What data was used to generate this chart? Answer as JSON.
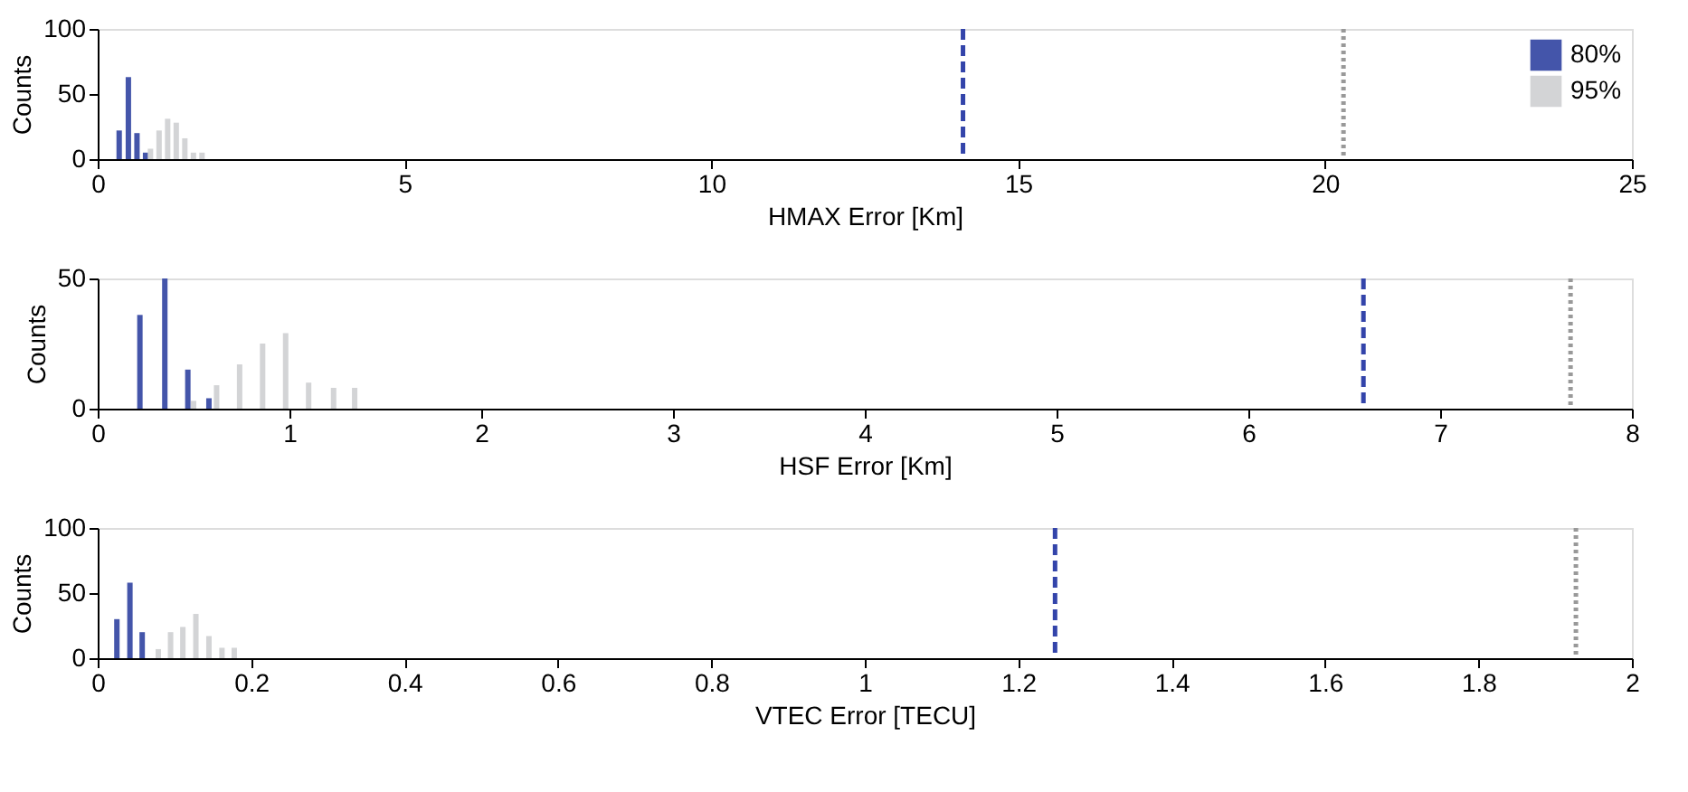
{
  "chart_data": [
    {
      "type": "bar",
      "xlabel": "HMAX Error [Km]",
      "ylabel": "Counts",
      "xlim": [
        0,
        25
      ],
      "xticks": [
        0,
        5,
        10,
        15,
        20,
        25
      ],
      "ylim": [
        0,
        100
      ],
      "yticks": [
        0,
        50,
        100
      ],
      "grid": false,
      "legend": "top right",
      "series": [
        {
          "name": "80%",
          "color": "#4455aa",
          "x": [
            0.35,
            0.5,
            0.64,
            0.78
          ],
          "values": [
            22,
            63,
            20,
            5
          ]
        },
        {
          "name": "95%",
          "color": "#d3d4d6",
          "x": [
            0.86,
            1.0,
            1.14,
            1.28,
            1.42,
            1.56,
            1.7
          ],
          "values": [
            8,
            22,
            31,
            28,
            16,
            5,
            5
          ]
        }
      ],
      "ref_lines": [
        {
          "axis": "x",
          "value": 14.1,
          "color": "#3344aa",
          "line_style": "dashed"
        },
        {
          "axis": "x",
          "value": 20.3,
          "color": "#999999",
          "line_style": "dotted"
        }
      ]
    },
    {
      "type": "bar",
      "xlabel": "HSF Error [Km]",
      "ylabel": "Counts",
      "xlim": [
        0,
        8
      ],
      "xticks": [
        0,
        1,
        2,
        3,
        4,
        5,
        6,
        7,
        8
      ],
      "ylim": [
        0,
        50
      ],
      "yticks": [
        0,
        50
      ],
      "grid": false,
      "series": [
        {
          "color": "#4455aa",
          "x": [
            0.22,
            0.35,
            0.47,
            0.58
          ],
          "values": [
            36,
            50,
            15,
            4
          ]
        },
        {
          "color": "#d3d4d6",
          "x": [
            0.5,
            0.62,
            0.74,
            0.86,
            0.98,
            1.1,
            1.23,
            1.34
          ],
          "values": [
            3,
            9,
            17,
            25,
            29,
            10,
            8,
            8
          ]
        }
      ],
      "ref_lines": [
        {
          "axis": "x",
          "value": 6.6,
          "color": "#3344aa",
          "line_style": "dashed"
        },
        {
          "axis": "x",
          "value": 7.68,
          "color": "#999999",
          "line_style": "dotted"
        }
      ]
    },
    {
      "type": "bar",
      "xlabel": "VTEC Error [TECU]",
      "ylabel": "Counts",
      "xlim": [
        0,
        2
      ],
      "xticks": [
        0,
        0.2,
        0.4,
        0.6,
        0.8,
        1,
        1.2,
        1.4,
        1.6,
        1.8,
        2
      ],
      "ylim": [
        0,
        100
      ],
      "yticks": [
        0,
        50,
        100
      ],
      "grid": false,
      "series": [
        {
          "color": "#4455aa",
          "x": [
            0.025,
            0.042,
            0.058
          ],
          "values": [
            30,
            58,
            20
          ]
        },
        {
          "color": "#d3d4d6",
          "x": [
            0.079,
            0.095,
            0.111,
            0.128,
            0.145,
            0.162,
            0.178
          ],
          "values": [
            7,
            20,
            24,
            34,
            17,
            8,
            8
          ]
        }
      ],
      "ref_lines": [
        {
          "axis": "x",
          "value": 1.248,
          "color": "#3344aa",
          "line_style": "dashed"
        },
        {
          "axis": "x",
          "value": 1.927,
          "color": "#999999",
          "line_style": "dotted"
        }
      ]
    }
  ]
}
